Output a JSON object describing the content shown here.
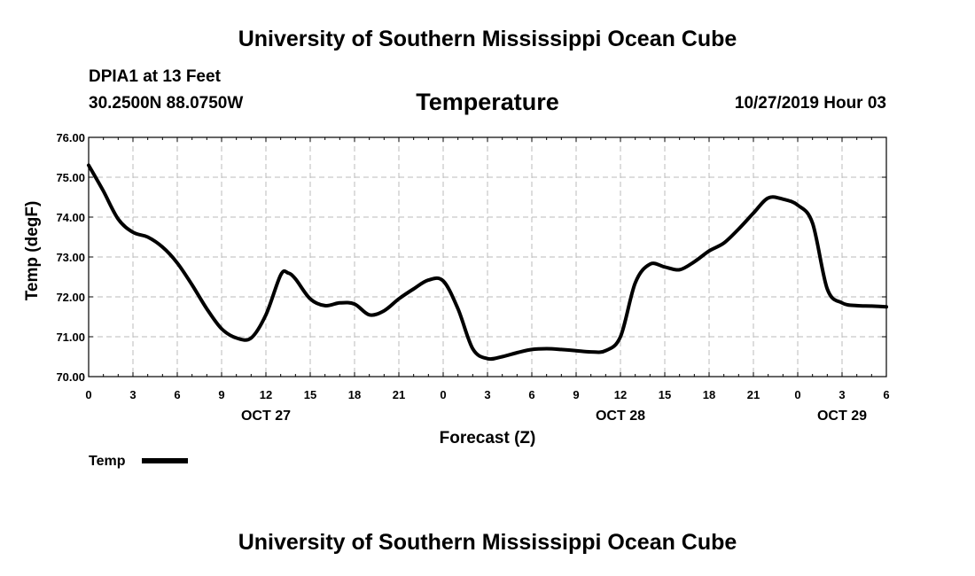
{
  "header": {
    "org_title": "University of Southern Mississippi Ocean Cube",
    "station": "DPIA1 at 13 Feet",
    "coordinates": "30.2500N 88.0750W",
    "valid_time": "10/27/2019 Hour 03"
  },
  "footer": {
    "org_title": "University of Southern Mississippi Ocean Cube"
  },
  "colors": {
    "line": "#000000",
    "grid": "#bbbbbb",
    "background": "#ffffff"
  },
  "chart_data": {
    "type": "line",
    "title": "Temperature",
    "xlabel": "Forecast (Z)",
    "ylabel": "Temp (degF)",
    "xlim": [
      0,
      54
    ],
    "ylim": [
      70.0,
      76.0
    ],
    "grid": true,
    "legend_position": "bottom-left",
    "x_ticks": [
      0,
      3,
      6,
      9,
      12,
      15,
      18,
      21,
      24,
      27,
      30,
      33,
      36,
      39,
      42,
      45,
      48,
      51,
      54
    ],
    "x_tick_labels": [
      "0",
      "3",
      "6",
      "9",
      "12",
      "15",
      "18",
      "21",
      "0",
      "3",
      "6",
      "9",
      "12",
      "15",
      "18",
      "21",
      "0",
      "3",
      "6"
    ],
    "y_ticks": [
      70,
      71,
      72,
      73,
      74,
      75,
      76
    ],
    "y_tick_labels": [
      "70.00",
      "71.00",
      "72.00",
      "73.00",
      "74.00",
      "75.00",
      "76.00"
    ],
    "date_labels": [
      {
        "x": 12,
        "label": "OCT 27"
      },
      {
        "x": 36,
        "label": "OCT 28"
      },
      {
        "x": 51,
        "label": "OCT 29"
      }
    ],
    "series": [
      {
        "name": "Temp",
        "x": [
          0,
          1,
          2,
          3,
          4,
          5,
          6,
          7,
          8,
          9,
          10,
          11,
          12,
          13,
          13.5,
          14,
          15,
          16,
          17,
          18,
          19,
          20,
          21,
          22,
          23,
          24,
          25,
          26,
          27,
          28,
          29,
          30,
          31,
          32,
          33,
          34,
          35,
          36,
          37,
          38,
          39,
          40,
          41,
          42,
          43,
          44,
          45,
          46,
          47,
          48,
          49,
          50,
          51,
          52,
          53,
          54
        ],
        "y": [
          75.3,
          74.65,
          73.95,
          73.62,
          73.5,
          73.25,
          72.85,
          72.3,
          71.7,
          71.2,
          70.97,
          70.97,
          71.55,
          72.55,
          72.6,
          72.45,
          71.95,
          71.78,
          71.85,
          71.82,
          71.55,
          71.65,
          71.95,
          72.2,
          72.42,
          72.4,
          71.7,
          70.7,
          70.45,
          70.5,
          70.6,
          70.68,
          70.7,
          70.68,
          70.65,
          70.62,
          70.65,
          71.0,
          72.35,
          72.82,
          72.75,
          72.68,
          72.88,
          73.15,
          73.35,
          73.7,
          74.1,
          74.48,
          74.45,
          74.3,
          73.85,
          72.2,
          71.85,
          71.78,
          71.77,
          71.75
        ]
      }
    ]
  }
}
